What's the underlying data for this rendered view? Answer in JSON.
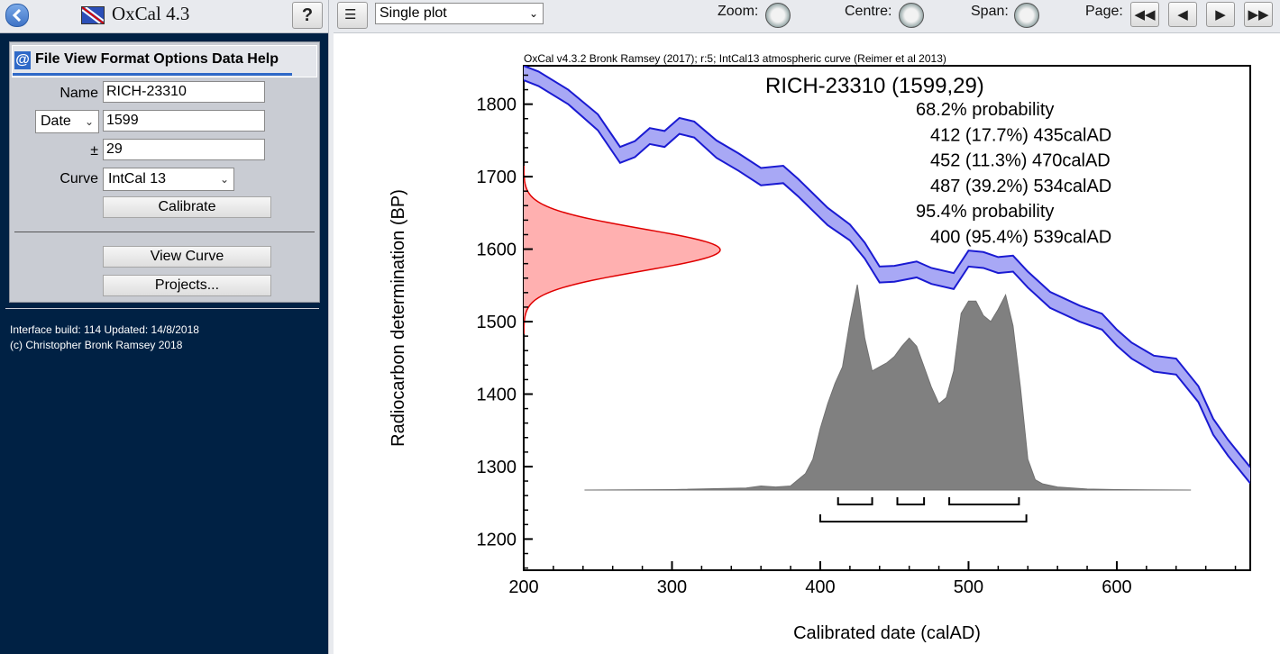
{
  "app": {
    "title": "OxCal 4.3",
    "help_label": "?"
  },
  "menu": {
    "text": "File View Format Options Data Help"
  },
  "form": {
    "name_label": "Name",
    "name_value": "RICH-23310",
    "date_type": "Date",
    "date_value": "1599",
    "pm_label": "±",
    "error_value": "29",
    "curve_label": "Curve",
    "curve_value": "IntCal 13",
    "calibrate_label": "Calibrate",
    "view_curve_label": "View Curve",
    "projects_label": "Projects..."
  },
  "info": {
    "build": "Interface build: 114 Updated: 14/8/2018",
    "copyright": "(c) Christopher Bronk Ramsey 2018"
  },
  "toolbar": {
    "plot_type": "Single plot",
    "zoom_label": "Zoom:",
    "centre_label": "Centre:",
    "span_label": "Span:",
    "page_label": "Page:"
  },
  "colors": {
    "curve": "#1a1ad2",
    "curve_fill": "#a8a8f5",
    "radiocarbon": "#e00000",
    "radiocarbon_fill": "#ffb0b0",
    "posterior": "#808080",
    "panel_dark": "#002144"
  },
  "chart_data": {
    "type": "area",
    "credit": "OxCal v4.3.2 Bronk Ramsey (2017); r:5; IntCal13 atmospheric curve (Reimer et al 2013)",
    "title": "RICH-23310 (1599,29)",
    "annotations": [
      "68.2% probability",
      "412 (17.7%) 435calAD",
      "452 (11.3%) 470calAD",
      "487 (39.2%) 534calAD",
      "95.4% probability",
      "400 (95.4%) 539calAD"
    ],
    "xlabel": "Calibrated date (calAD)",
    "ylabel": "Radiocarbon determination (BP)",
    "xlim": [
      200,
      690
    ],
    "ylim": [
      1157,
      1853
    ],
    "xticks": [
      200,
      300,
      400,
      500,
      600
    ],
    "yticks": [
      1200,
      1300,
      1400,
      1500,
      1600,
      1700,
      1800
    ],
    "calibration_curve": {
      "x": [
        200,
        210,
        230,
        250,
        265,
        275,
        285,
        295,
        305,
        315,
        330,
        345,
        360,
        375,
        385,
        395,
        405,
        420,
        430,
        440,
        450,
        465,
        475,
        490,
        500,
        510,
        520,
        530,
        540,
        555,
        575,
        590,
        600,
        610,
        625,
        640,
        655,
        665,
        675,
        690
      ],
      "y": [
        1843,
        1835,
        1810,
        1775,
        1730,
        1738,
        1756,
        1752,
        1770,
        1765,
        1738,
        1720,
        1700,
        1703,
        1685,
        1665,
        1645,
        1623,
        1598,
        1565,
        1566,
        1572,
        1563,
        1556,
        1587,
        1585,
        1578,
        1580,
        1558,
        1530,
        1511,
        1500,
        1478,
        1460,
        1442,
        1438,
        1400,
        1355,
        1326,
        1288
      ],
      "sigma": [
        10,
        10,
        10,
        11,
        11,
        11,
        11,
        11,
        11,
        11,
        12,
        12,
        12,
        12,
        12,
        12,
        12,
        11,
        11,
        11,
        11,
        11,
        11,
        11,
        11,
        11,
        11,
        11,
        11,
        11,
        11,
        11,
        11,
        11,
        11,
        11,
        11,
        11,
        11,
        11
      ]
    },
    "radiocarbon_date": {
      "mean": 1599,
      "sigma": 29
    },
    "calibrated_distribution": {
      "x": [
        241,
        300,
        350,
        360,
        370,
        380,
        390,
        395,
        400,
        405,
        410,
        415,
        420,
        425,
        430,
        435,
        440,
        445,
        450,
        455,
        460,
        465,
        470,
        475,
        480,
        485,
        490,
        495,
        500,
        505,
        510,
        515,
        520,
        525,
        530,
        535,
        540,
        545,
        550,
        560,
        580,
        600,
        650
      ],
      "y": [
        0,
        0.002,
        0.01,
        0.02,
        0.015,
        0.02,
        0.08,
        0.15,
        0.3,
        0.42,
        0.52,
        0.6,
        0.82,
        1.0,
        0.74,
        0.58,
        0.6,
        0.62,
        0.65,
        0.7,
        0.74,
        0.7,
        0.6,
        0.5,
        0.42,
        0.45,
        0.58,
        0.86,
        0.92,
        0.92,
        0.85,
        0.82,
        0.88,
        0.95,
        0.8,
        0.5,
        0.15,
        0.05,
        0.03,
        0.015,
        0.005,
        0.002,
        0
      ]
    },
    "ranges_68": [
      [
        412,
        435
      ],
      [
        452,
        470
      ],
      [
        487,
        534
      ]
    ],
    "ranges_95": [
      [
        400,
        539
      ]
    ]
  }
}
